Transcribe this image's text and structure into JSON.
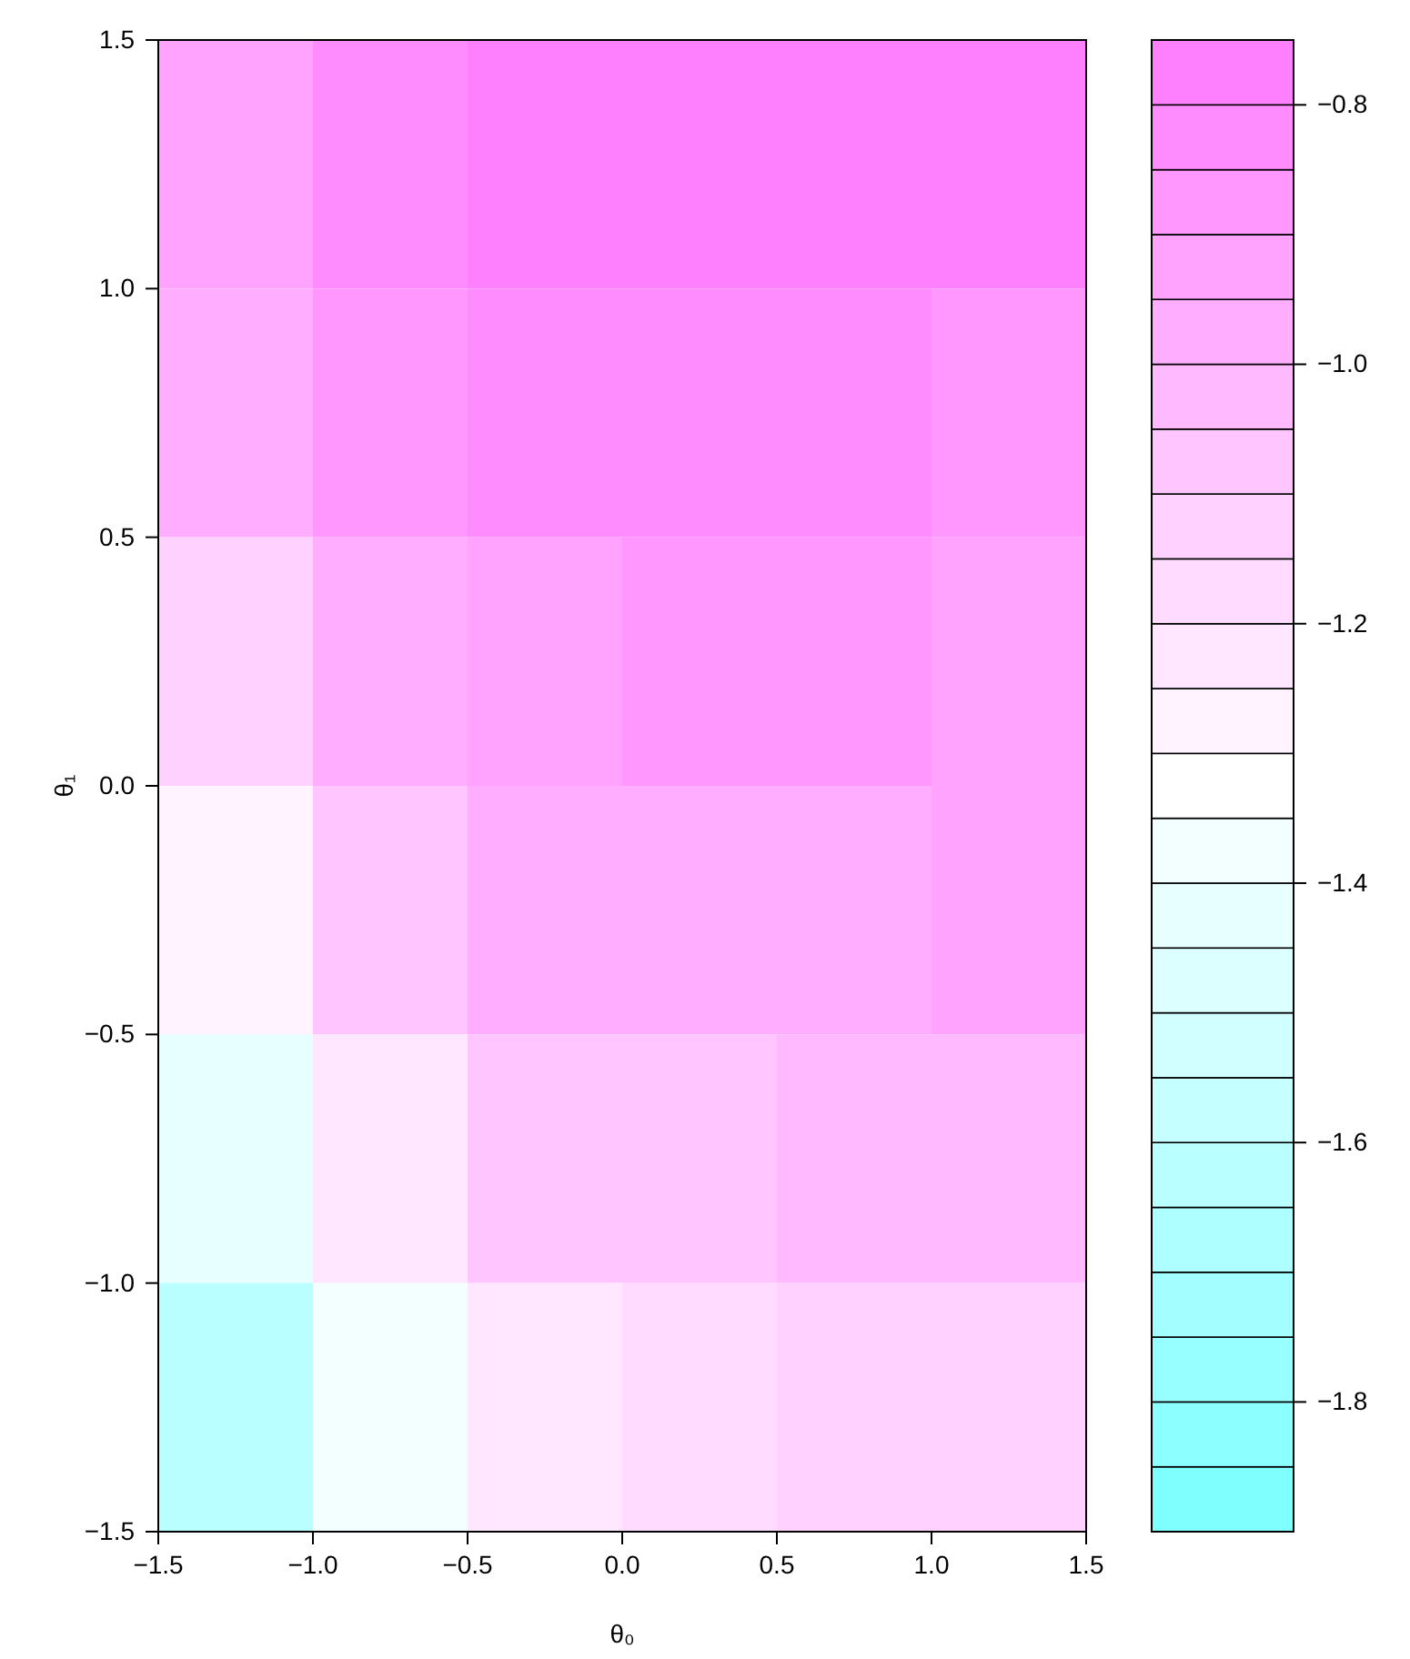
{
  "chart_data": {
    "type": "heatmap",
    "xlabel": "θ₀",
    "ylabel": "θ₁",
    "xlim": [
      -1.5,
      1.5
    ],
    "ylim": [
      -1.5,
      1.5
    ],
    "xticks": [
      {
        "value": -1.5,
        "label": "−1.5"
      },
      {
        "value": -1.0,
        "label": "−1.0"
      },
      {
        "value": -0.5,
        "label": "−0.5"
      },
      {
        "value": 0.0,
        "label": "0.0"
      },
      {
        "value": 0.5,
        "label": "0.5"
      },
      {
        "value": 1.0,
        "label": "1.0"
      },
      {
        "value": 1.5,
        "label": "1.5"
      }
    ],
    "yticks": [
      {
        "value": -1.5,
        "label": "−1.5"
      },
      {
        "value": -1.0,
        "label": "−1.0"
      },
      {
        "value": -0.5,
        "label": "−0.5"
      },
      {
        "value": 0.0,
        "label": "0.0"
      },
      {
        "value": 0.5,
        "label": "0.5"
      },
      {
        "value": 1.0,
        "label": "1.0"
      },
      {
        "value": 1.5,
        "label": "1.5"
      }
    ],
    "cells": [
      [
        -0.94,
        -0.85,
        -0.8,
        -0.79,
        -0.79,
        -0.8
      ],
      [
        -1.0,
        -0.9,
        -0.85,
        -0.84,
        -0.85,
        -0.86
      ],
      [
        -1.11,
        -0.98,
        -0.91,
        -0.9,
        -0.9,
        -0.91
      ],
      [
        -1.27,
        -1.09,
        -0.99,
        -0.97,
        -0.96,
        -0.95
      ],
      [
        -1.45,
        -1.23,
        -1.1,
        -1.07,
        -1.04,
        -1.02
      ],
      [
        -1.64,
        -1.39,
        -1.24,
        -1.19,
        -1.15,
        -1.11
      ]
    ],
    "clim": [
      -1.9,
      -0.75
    ],
    "cticks": [
      {
        "value": -1.9,
        "label": null
      },
      {
        "value": -1.85,
        "label": null
      },
      {
        "value": -1.8,
        "label": "−1.8"
      },
      {
        "value": -1.75,
        "label": null
      },
      {
        "value": -1.7,
        "label": null
      },
      {
        "value": -1.65,
        "label": null
      },
      {
        "value": -1.6,
        "label": "−1.6"
      },
      {
        "value": -1.55,
        "label": null
      },
      {
        "value": -1.5,
        "label": null
      },
      {
        "value": -1.45,
        "label": null
      },
      {
        "value": -1.4,
        "label": "−1.4"
      },
      {
        "value": -1.35,
        "label": null
      },
      {
        "value": -1.3,
        "label": null
      },
      {
        "value": -1.25,
        "label": null
      },
      {
        "value": -1.2,
        "label": "−1.2"
      },
      {
        "value": -1.15,
        "label": null
      },
      {
        "value": -1.1,
        "label": null
      },
      {
        "value": -1.05,
        "label": null
      },
      {
        "value": -1.0,
        "label": "−1.0"
      },
      {
        "value": -0.95,
        "label": null
      },
      {
        "value": -0.9,
        "label": null
      },
      {
        "value": -0.85,
        "label": null
      },
      {
        "value": -0.8,
        "label": "−0.8"
      },
      {
        "value": -0.75,
        "label": null
      }
    ]
  }
}
